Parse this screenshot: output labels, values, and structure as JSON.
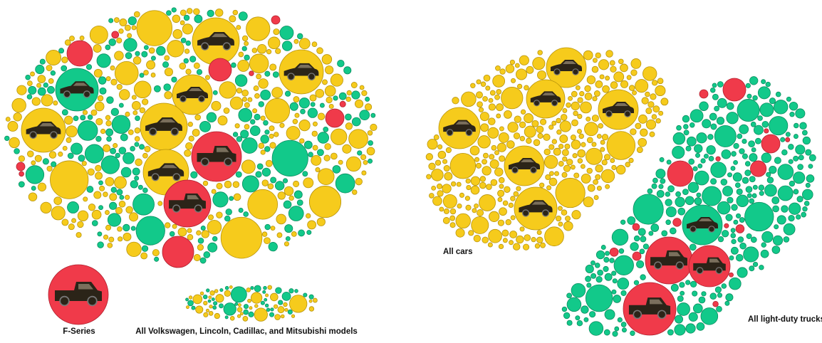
{
  "colors": {
    "car": "#F6CB1C",
    "car_stroke": "#B8940C",
    "truck": "#12C98A",
    "truck_stroke": "#0B8E60",
    "highlight": "#F03A4A",
    "highlight_stroke": "#B0202E",
    "icon": "#2B2418"
  },
  "chart_data": {
    "type": "bubble-pack",
    "categories": [
      "car",
      "truck",
      "highlight"
    ],
    "groups": [
      {
        "label": "",
        "kind": "mixed"
      },
      {
        "label": "F-Series",
        "kind": "single"
      },
      {
        "label": "All Volkswagen, Lincoln, Cadillac, and Mitsubishi models",
        "kind": "mixed"
      },
      {
        "label": "All cars",
        "kind": "car"
      },
      {
        "label": "All light-duty trucks",
        "kind": "truck"
      }
    ]
  }
}
